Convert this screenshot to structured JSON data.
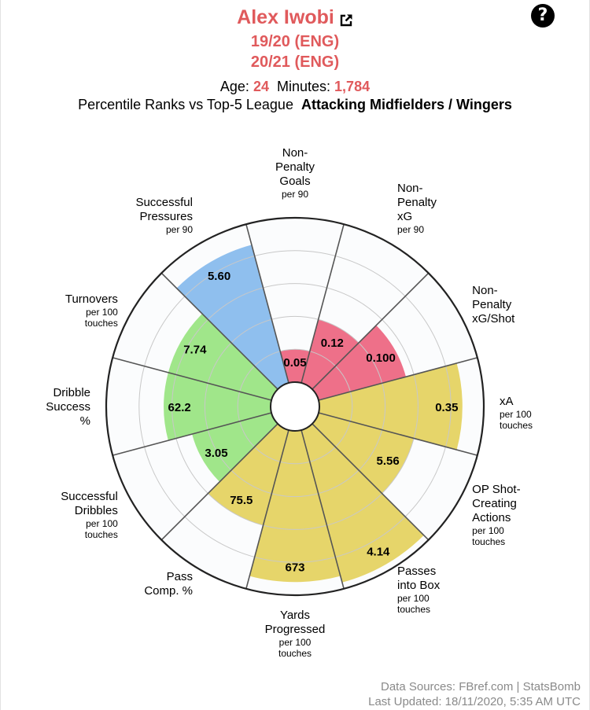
{
  "header": {
    "player": "Alex Iwobi",
    "seasons": [
      "19/20 (ENG)",
      "20/21 (ENG)"
    ],
    "age_label": "Age:",
    "age": "24",
    "minutes_label": "Minutes:",
    "minutes": "1,784",
    "comparison_prefix": "Percentile Ranks vs Top-5 League",
    "comparison_group": "Attacking Midfielders / Wingers"
  },
  "footer": {
    "sources": "Data Sources: FBref.com | StatsBomb",
    "updated": "Last Updated: 18/11/2020, 5:35 AM UTC"
  },
  "colors": {
    "accent": "#e05a5c",
    "attacking": "#ee7089",
    "possession": "#e6d56a",
    "dribbling": "#a0e68a",
    "defending": "#8fbfee"
  },
  "chart_data": {
    "type": "radar",
    "scale": "percentile",
    "rlim": [
      0,
      100
    ],
    "rings": [
      20,
      40,
      60,
      80,
      100
    ],
    "metrics": [
      {
        "name": "Non-Penalty Goals",
        "unit": "per 90",
        "value": "0.05",
        "percentile": 20,
        "group": "attacking"
      },
      {
        "name": "Non-Penalty xG",
        "unit": "per 90",
        "value": "0.12",
        "percentile": 40,
        "group": "attacking"
      },
      {
        "name": "Non-Penalty xG/Shot",
        "unit": "",
        "value": "0.100",
        "percentile": 55,
        "group": "attacking"
      },
      {
        "name": "xA",
        "unit": "per 100 touches",
        "value": "0.35",
        "percentile": 87,
        "group": "possession"
      },
      {
        "name": "OP Shot-Creating Actions",
        "unit": "per 100 touches",
        "value": "5.56",
        "percentile": 60,
        "group": "possession"
      },
      {
        "name": "Passes into Box",
        "unit": "per 100 touches",
        "value": "4.14",
        "percentile": 96,
        "group": "possession"
      },
      {
        "name": "Yards Progressed",
        "unit": "per 100 touches",
        "value": "673",
        "percentile": 92,
        "group": "possession"
      },
      {
        "name": "Pass Comp. %",
        "unit": "",
        "value": "75.5",
        "percentile": 60,
        "group": "possession"
      },
      {
        "name": "Successful Dribbles",
        "unit": "per 100 touches",
        "value": "3.05",
        "percentile": 50,
        "group": "dribbling"
      },
      {
        "name": "Dribble Success %",
        "unit": "",
        "value": "62.2",
        "percentile": 65,
        "group": "dribbling"
      },
      {
        "name": "Turnovers",
        "unit": "per 100 touches",
        "value": "7.74",
        "percentile": 65,
        "group": "dribbling"
      },
      {
        "name": "Successful Pressures",
        "unit": "per 90",
        "value": "5.60",
        "percentile": 87,
        "group": "defending"
      }
    ]
  }
}
